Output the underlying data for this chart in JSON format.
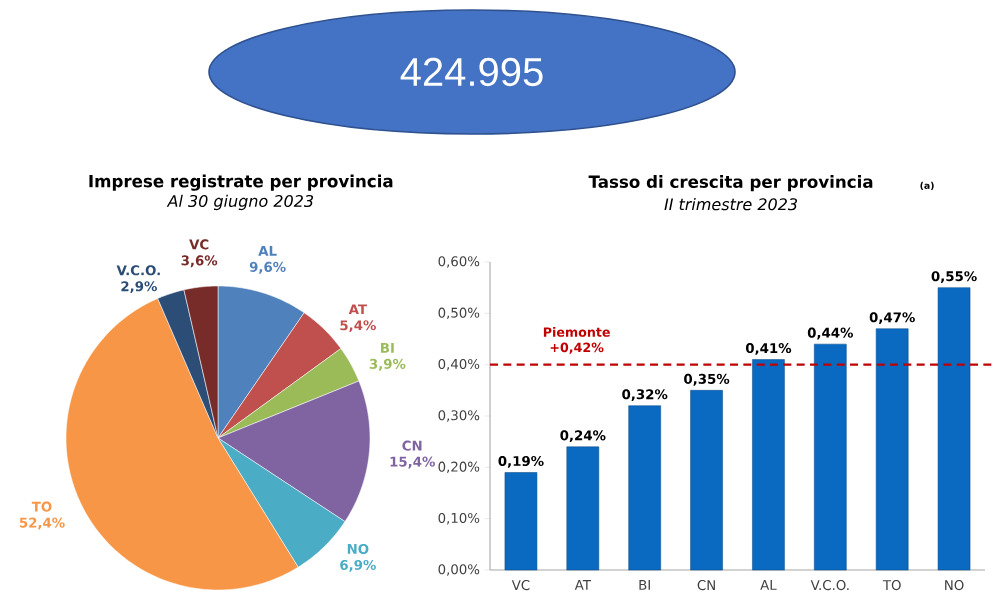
{
  "chart_data": [
    {
      "type": "other",
      "title": "424.995"
    },
    {
      "type": "pie",
      "title": "Imprese registrate per provincia",
      "subtitle": "Al 30 giugno 2023",
      "categories": [
        "AL",
        "AT",
        "BI",
        "CN",
        "NO",
        "TO",
        "V.C.O.",
        "VC"
      ],
      "values": [
        9.6,
        5.4,
        3.9,
        15.4,
        6.9,
        52.4,
        2.9,
        3.6
      ],
      "value_labels": [
        "9,6%",
        "5,4%",
        "3,9%",
        "15,4%",
        "6,9%",
        "52,4%",
        "2,9%",
        "3,6%"
      ],
      "colors": [
        "#4f81bd",
        "#c0504d",
        "#9bbb59",
        "#8064a2",
        "#4bacc6",
        "#f79646",
        "#2c4d75",
        "#772c2a"
      ]
    },
    {
      "type": "bar",
      "title": "Tasso di crescita per provincia",
      "subtitle": "II trimestre 2023",
      "annotations": [
        "(a)"
      ],
      "categories": [
        "VC",
        "AT",
        "BI",
        "CN",
        "AL",
        "V.C.O.",
        "TO",
        "NO"
      ],
      "values": [
        0.19,
        0.24,
        0.32,
        0.35,
        0.41,
        0.44,
        0.47,
        0.55
      ],
      "value_labels": [
        "0,19%",
        "0,24%",
        "0,32%",
        "0,35%",
        "0,41%",
        "0,44%",
        "0,47%",
        "0,55%"
      ],
      "color": "#0a6ac2",
      "ylim": [
        0,
        0.6
      ],
      "yticks": [
        {
          "value": 0,
          "label": "0,00%"
        },
        {
          "value": 0.1,
          "label": "0,10%"
        },
        {
          "value": 0.2,
          "label": "0,20%"
        },
        {
          "value": 0.3,
          "label": "0,30%"
        },
        {
          "value": 0.4,
          "label": "0,40%"
        },
        {
          "value": 0.5,
          "label": "0,50%"
        },
        {
          "value": 0.6,
          "label": "0,60%"
        }
      ],
      "ref_lines": [
        {
          "axis": "y",
          "value": 0.4,
          "label": "Piemonte +0,42%",
          "color": "#c00000",
          "line_style": "dashed"
        }
      ]
    }
  ]
}
